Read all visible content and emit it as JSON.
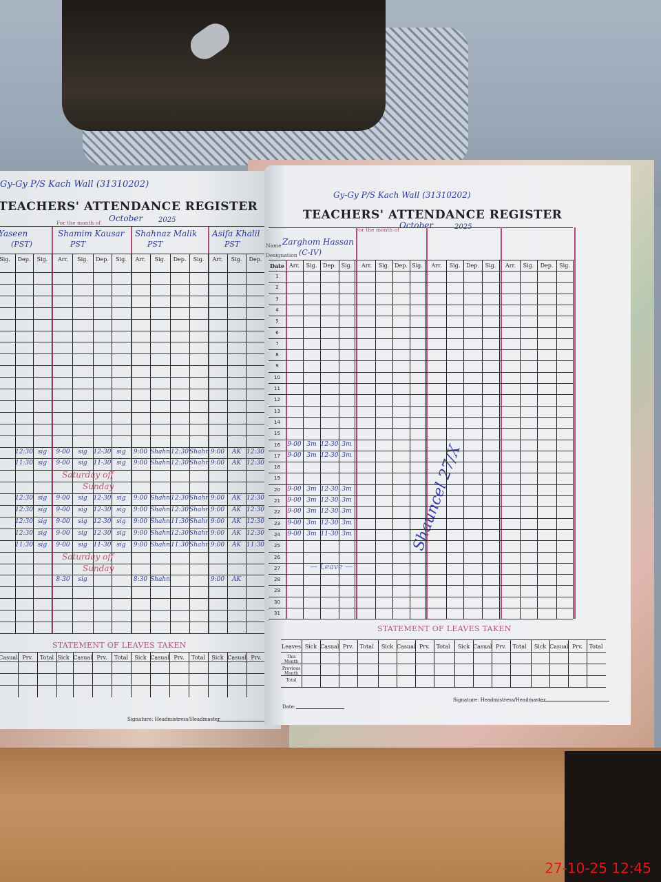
{
  "left_page": {
    "school_note": "Gy-Gy P/S Kach Wall (31310202)",
    "title": "TEACHERS' ATTENDANCE REGISTER",
    "month_label": "For the month of",
    "month": "October",
    "year": "2025",
    "teachers": [
      {
        "name": "Yaseen",
        "designation": "(PST)"
      },
      {
        "name": "Shamim Kausar",
        "designation": "PST"
      },
      {
        "name": "Shahnaz Malik",
        "designation": "PST"
      },
      {
        "name": "Asifa Khalil",
        "designation": "PST"
      }
    ],
    "partial_columns": [
      "Sig.",
      "Dep.",
      "Sig."
    ],
    "columns": [
      "Arr.",
      "Sig.",
      "Dep.",
      "Sig."
    ],
    "entries": [
      {
        "date": 16,
        "cells": [
          [
            "12:30",
            "sig"
          ],
          [
            "9-00",
            "sig",
            "12-30",
            "sig"
          ],
          [
            "9:00",
            "Shahnaz",
            "12:30",
            "Shahnaz"
          ],
          [
            "9:00",
            "AK",
            "12:30",
            "AK"
          ]
        ]
      },
      {
        "date": 17,
        "cells": [
          [
            "11:30",
            "sig"
          ],
          [
            "9-00",
            "sig",
            "11-30",
            "sig"
          ],
          [
            "9:00",
            "Shahnaz",
            "12:30",
            "Shahnaz"
          ],
          [
            "9:00",
            "AK",
            "12:30",
            "AK"
          ]
        ]
      },
      {
        "date": 20,
        "cells": [
          [
            "12:30",
            "sig"
          ],
          [
            "9-00",
            "sig",
            "12-30",
            "sig"
          ],
          [
            "9:00",
            "Shahnaz",
            "12:30",
            "Shahnaz"
          ],
          [
            "9:00",
            "AK",
            "12:30",
            "AK"
          ]
        ]
      },
      {
        "date": 21,
        "cells": [
          [
            "12:30",
            "sig"
          ],
          [
            "9-00",
            "sig",
            "12-30",
            "sig"
          ],
          [
            "9:00",
            "Shahnaz",
            "12:30",
            "Shahnaz"
          ],
          [
            "9:00",
            "AK",
            "12:30",
            "AK"
          ]
        ]
      },
      {
        "date": 22,
        "cells": [
          [
            "12:30",
            "sig"
          ],
          [
            "9-00",
            "sig",
            "12-30",
            "sig"
          ],
          [
            "9:00",
            "Shahnaz",
            "11:30",
            "Shahnaz"
          ],
          [
            "9:00",
            "AK",
            "12:30",
            "AK"
          ]
        ]
      },
      {
        "date": 23,
        "cells": [
          [
            "12:30",
            "sig"
          ],
          [
            "9-00",
            "sig",
            "12-30",
            "sig"
          ],
          [
            "9:00",
            "Shahnaz",
            "12:30",
            "Shahnaz"
          ],
          [
            "9:00",
            "AK",
            "12:30",
            "AK"
          ]
        ]
      },
      {
        "date": 24,
        "cells": [
          [
            "11:30",
            "sig"
          ],
          [
            "9-00",
            "sig",
            "11-30",
            "sig"
          ],
          [
            "9:00",
            "Shahnaz",
            "11:30",
            "Shahnaz"
          ],
          [
            "9:00",
            "AK",
            "11:30",
            "AK"
          ]
        ]
      },
      {
        "date": 27,
        "cells": [
          [
            "",
            ""
          ],
          [
            "8-30",
            "sig",
            "",
            ""
          ],
          [
            "8:30",
            "Shahnaz",
            "",
            ""
          ],
          [
            "9:00",
            "AK",
            "",
            ""
          ]
        ]
      }
    ],
    "notes": [
      {
        "date": 18,
        "text": "Saturday off"
      },
      {
        "date": 19,
        "text": "Sunday"
      },
      {
        "date": 25,
        "text": "Saturday off"
      },
      {
        "date": 26,
        "text": "Sunday"
      }
    ],
    "statement_title": "STATEMENT OF LEAVES TAKEN",
    "signature_label": "Signature: Headmistress/Headmaster"
  },
  "right_page": {
    "school_note": "Gy-Gy P/S Kach Wall (31310202)",
    "title": "TEACHERS' ATTENDANCE REGISTER",
    "month_label": "For the month of",
    "month": "October",
    "year": "2025",
    "name_label": "Name",
    "designation_label": "Designation",
    "teachers": [
      {
        "name": "Zarghom Hassan",
        "designation": "(C-IV)"
      },
      {
        "name": "",
        "designation": ""
      },
      {
        "name": "",
        "designation": ""
      },
      {
        "name": "",
        "designation": ""
      }
    ],
    "date_label": "Date",
    "columns": [
      "Arr.",
      "Sig.",
      "Dep.",
      "Sig."
    ],
    "dates": [
      1,
      2,
      3,
      4,
      5,
      6,
      7,
      8,
      9,
      10,
      11,
      12,
      13,
      14,
      15,
      16,
      17,
      18,
      19,
      20,
      21,
      22,
      23,
      24,
      25,
      26,
      27,
      28,
      29,
      30,
      31
    ],
    "entries": [
      {
        "date": 16,
        "cells": [
          "9-00",
          "3m",
          "12-30",
          "3m"
        ]
      },
      {
        "date": 17,
        "cells": [
          "9-00",
          "3m",
          "12-30",
          "3m"
        ]
      },
      {
        "date": 20,
        "cells": [
          "9-00",
          "3m",
          "12-30",
          "3m"
        ]
      },
      {
        "date": 21,
        "cells": [
          "9-00",
          "3m",
          "12-30",
          "3m"
        ]
      },
      {
        "date": 22,
        "cells": [
          "9-00",
          "3m",
          "12-30",
          "3m"
        ]
      },
      {
        "date": 23,
        "cells": [
          "9-00",
          "3m",
          "12-30",
          "3m"
        ]
      },
      {
        "date": 24,
        "cells": [
          "9-00",
          "3m",
          "11-30",
          "3m"
        ]
      }
    ],
    "notes": [
      {
        "date": 27,
        "text": "— Leave —"
      }
    ],
    "headmaster_signature": "Shauncel 27/X",
    "statement_title": "STATEMENT OF LEAVES TAKEN",
    "leaves_label": "Leaves",
    "leave_columns": [
      "Sick",
      "Casual",
      "Prv.",
      "Total"
    ],
    "leave_rows": [
      "This Month",
      "Previous Month",
      "Total"
    ],
    "date_footer": "Date:",
    "signature_label": "Signature: Headmistress/Headmaster"
  },
  "timestamp": "27-10-25  12:45",
  "colors": {
    "ink": "#2c3a92",
    "rule_pink": "#b44a7a",
    "stamp_red": "#e01818"
  }
}
